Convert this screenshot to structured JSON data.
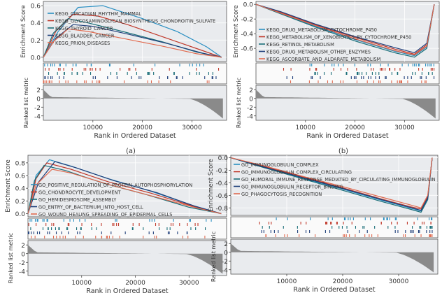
{
  "figure": {
    "series_colors": [
      "#2a8fc2",
      "#c0392b",
      "#1a6e78",
      "#1f3f7a",
      "#e06a4f"
    ],
    "panel_bg": "#e9ebee",
    "grid_color": "#ffffff"
  },
  "chart_data": [
    {
      "type": "line",
      "caption": "(a)",
      "xlabel": "Rank in Ordered Dataset",
      "ylabel_top": "Enrichment Score",
      "ylabel_bottom": "Ranked list metric",
      "x_ticks": [
        "10000",
        "20000",
        "30000"
      ],
      "xlim": [
        0,
        37000
      ],
      "es_ticks": [
        "0.0",
        "0.2",
        "0.4",
        "0.6"
      ],
      "es_ylim": [
        -0.05,
        0.65
      ],
      "metric_ticks": [
        "2",
        "0",
        "-2",
        "-4"
      ],
      "metric_ylim": [
        -5,
        3
      ],
      "series": [
        {
          "name": "KEGG_CIRCADIAN_RHYTHM_MAMMAL",
          "x": [
            0,
            3000,
            7000,
            12000,
            20000,
            27000,
            33000,
            36000
          ],
          "y": [
            0,
            0.3,
            0.58,
            0.6,
            0.45,
            0.3,
            0.12,
            0
          ]
        },
        {
          "name": "KEGG_GLYCOSAMINOGLYCAN_BIOSYNTHESIS_CHONDROITIN_SULFATE",
          "x": [
            0,
            2500,
            6000,
            11000,
            17000,
            25000,
            32000,
            36000
          ],
          "y": [
            0,
            0.3,
            0.5,
            0.48,
            0.38,
            0.22,
            0.08,
            0
          ]
        },
        {
          "name": "KEGG_THYROID_CANCER",
          "x": [
            0,
            2000,
            5000,
            9000,
            16000,
            24000,
            31000,
            36000
          ],
          "y": [
            0,
            0.28,
            0.45,
            0.4,
            0.3,
            0.18,
            0.06,
            0
          ]
        },
        {
          "name": "KEGG_BLADDER_CANCER",
          "x": [
            0,
            2500,
            6000,
            10000,
            17000,
            25000,
            32000,
            36000
          ],
          "y": [
            0,
            0.22,
            0.38,
            0.36,
            0.27,
            0.16,
            0.05,
            0
          ]
        },
        {
          "name": "KEGG_PRION_DISEASES",
          "x": [
            0,
            2000,
            5000,
            9000,
            16000,
            24000,
            31000,
            36000
          ],
          "y": [
            0,
            0.18,
            0.33,
            0.3,
            0.22,
            0.13,
            0.04,
            0
          ]
        }
      ]
    },
    {
      "type": "line",
      "caption": "(b)",
      "xlabel": "Rank in Ordered Dataset",
      "ylabel_top": "Enrichment Score",
      "ylabel_bottom": "Ranked list metric",
      "x_ticks": [
        "10000",
        "20000",
        "30000"
      ],
      "xlim": [
        0,
        37000
      ],
      "es_ticks": [
        "0.0",
        "-0.2",
        "-0.4",
        "-0.6"
      ],
      "es_ylim": [
        -0.78,
        0.04
      ],
      "metric_ticks": [
        "2",
        "0",
        "-2",
        "-4"
      ],
      "metric_ylim": [
        -5,
        3
      ],
      "series": [
        {
          "name": "KEGG_DRUG_METABOLISM_CYTOCHROME_P450",
          "x": [
            0,
            5000,
            12000,
            20000,
            28000,
            32000,
            34500,
            36000
          ],
          "y": [
            0,
            -0.12,
            -0.3,
            -0.48,
            -0.64,
            -0.7,
            -0.58,
            0
          ]
        },
        {
          "name": "KEGG_METABOLISM_OF_XENOBIOTICS_BY_CYTOCHROME_P450",
          "x": [
            0,
            5000,
            12000,
            20000,
            28000,
            32000,
            34500,
            36000
          ],
          "y": [
            0,
            -0.11,
            -0.28,
            -0.45,
            -0.61,
            -0.68,
            -0.55,
            0
          ]
        },
        {
          "name": "KEGG_RETINOL_METABOLISM",
          "x": [
            0,
            5000,
            12000,
            20000,
            28000,
            32000,
            34500,
            36000
          ],
          "y": [
            0,
            -0.13,
            -0.31,
            -0.5,
            -0.66,
            -0.72,
            -0.6,
            0
          ]
        },
        {
          "name": "KEGG_DRUG_METABOLISM_OTHER_ENZYMES",
          "x": [
            0,
            5000,
            12000,
            20000,
            28000,
            32000,
            34500,
            36000
          ],
          "y": [
            0,
            -0.1,
            -0.27,
            -0.44,
            -0.59,
            -0.66,
            -0.53,
            0
          ]
        },
        {
          "name": "KEGG_ASCORBATE_AND_ALDARATE_METABOLISM",
          "x": [
            0,
            5000,
            12000,
            20000,
            28000,
            32000,
            34500,
            36000
          ],
          "y": [
            0,
            -0.12,
            -0.29,
            -0.47,
            -0.63,
            -0.69,
            -0.57,
            0
          ]
        }
      ]
    },
    {
      "type": "line",
      "caption": "(c)",
      "xlabel": "Rank in Ordered Dataset",
      "ylabel_top": "Enrichment Score",
      "ylabel_bottom": "Ranked list metric",
      "x_ticks": [
        "10000",
        "20000",
        "30000"
      ],
      "xlim": [
        0,
        37000
      ],
      "es_ticks": [
        "0.0",
        "0.2",
        "0.4",
        "0.6",
        "0.8"
      ],
      "es_ylim": [
        -0.05,
        0.92
      ],
      "metric_ticks": [
        "2",
        "0",
        "-2",
        "-4"
      ],
      "metric_ylim": [
        -5,
        3
      ],
      "series": [
        {
          "name": "GO_POSITIVE_REGULATION_OF_PROTEIN_AUTOPHOSPHORYLATION",
          "x": [
            0,
            1500,
            4000,
            8000,
            15000,
            23000,
            31000,
            36000
          ],
          "y": [
            0,
            0.6,
            0.85,
            0.75,
            0.55,
            0.35,
            0.12,
            0
          ]
        },
        {
          "name": "GO_CHONDROCYTE_DEVELOPMENT",
          "x": [
            0,
            1500,
            3500,
            8000,
            15000,
            23000,
            31000,
            36000
          ],
          "y": [
            0,
            0.55,
            0.8,
            0.7,
            0.5,
            0.32,
            0.11,
            0
          ]
        },
        {
          "name": "GO_HEMIDESMOSOME_ASSEMBLY",
          "x": [
            0,
            1200,
            3000,
            7000,
            14000,
            22000,
            30000,
            36000
          ],
          "y": [
            0,
            0.52,
            0.76,
            0.68,
            0.48,
            0.3,
            0.1,
            0
          ]
        },
        {
          "name": "GO_ENTRY_OF_BACTERIUM_INTO_HOST_CELL",
          "x": [
            0,
            2000,
            5000,
            9000,
            16000,
            24000,
            31000,
            36000
          ],
          "y": [
            0,
            0.5,
            0.82,
            0.72,
            0.52,
            0.33,
            0.12,
            0
          ]
        },
        {
          "name": "GO_WOUND_HEALING_SPREADING_OF_EPIDERMAL_CELLS",
          "x": [
            0,
            1500,
            4500,
            8000,
            15000,
            23000,
            31000,
            36000
          ],
          "y": [
            0,
            0.45,
            0.7,
            0.64,
            0.46,
            0.28,
            0.1,
            0
          ]
        }
      ]
    },
    {
      "type": "line",
      "caption": "(d)",
      "xlabel": "Rank in Ordered Dataset",
      "ylabel_top": "Enrichment Score",
      "ylabel_bottom": "Ranked list metric",
      "x_ticks": [
        "10000",
        "20000",
        "30000"
      ],
      "xlim": [
        0,
        37000
      ],
      "es_ticks": [
        "0.0",
        "-0.2",
        "-0.4",
        "-0.6",
        "-0.8"
      ],
      "es_ylim": [
        -0.92,
        0.04
      ],
      "metric_ticks": [
        "2",
        "0",
        "-2",
        "-4"
      ],
      "metric_ylim": [
        -5,
        3
      ],
      "series": [
        {
          "name": "GO_IMMUNOGLOBULIN_COMPLEX",
          "x": [
            0,
            6000,
            13000,
            20000,
            27000,
            32000,
            34000,
            35200,
            36000
          ],
          "y": [
            0,
            -0.15,
            -0.33,
            -0.5,
            -0.68,
            -0.8,
            -0.85,
            -0.65,
            0
          ]
        },
        {
          "name": "GO_IMMUNOGLOBULIN_COMPLEX_CIRCULATING",
          "x": [
            0,
            6000,
            13000,
            20000,
            27000,
            32000,
            34000,
            35200,
            36000
          ],
          "y": [
            0,
            -0.14,
            -0.31,
            -0.48,
            -0.66,
            -0.78,
            -0.82,
            -0.62,
            0
          ]
        },
        {
          "name": "GO_HUMORAL_IMMUNE_RESPONSE_MEDIATED_BY_CIRCULATING_IMMUNOGLOBULIN",
          "x": [
            0,
            6000,
            13000,
            20000,
            27000,
            32000,
            34000,
            35200,
            36000
          ],
          "y": [
            0,
            -0.16,
            -0.34,
            -0.52,
            -0.7,
            -0.82,
            -0.87,
            -0.67,
            0
          ]
        },
        {
          "name": "GO_IMMUNOGLOBULIN_RECEPTOR_BINDING",
          "x": [
            0,
            6000,
            13000,
            20000,
            27000,
            32000,
            34000,
            35200,
            36000
          ],
          "y": [
            0,
            -0.15,
            -0.32,
            -0.49,
            -0.67,
            -0.79,
            -0.84,
            -0.64,
            0
          ]
        },
        {
          "name": "GO_PHAGOCYTOSIS_RECOGNITION",
          "x": [
            0,
            6000,
            13000,
            20000,
            27000,
            32000,
            34000,
            35200,
            36000
          ],
          "y": [
            0,
            -0.13,
            -0.3,
            -0.46,
            -0.63,
            -0.75,
            -0.8,
            -0.6,
            0
          ]
        }
      ]
    }
  ]
}
